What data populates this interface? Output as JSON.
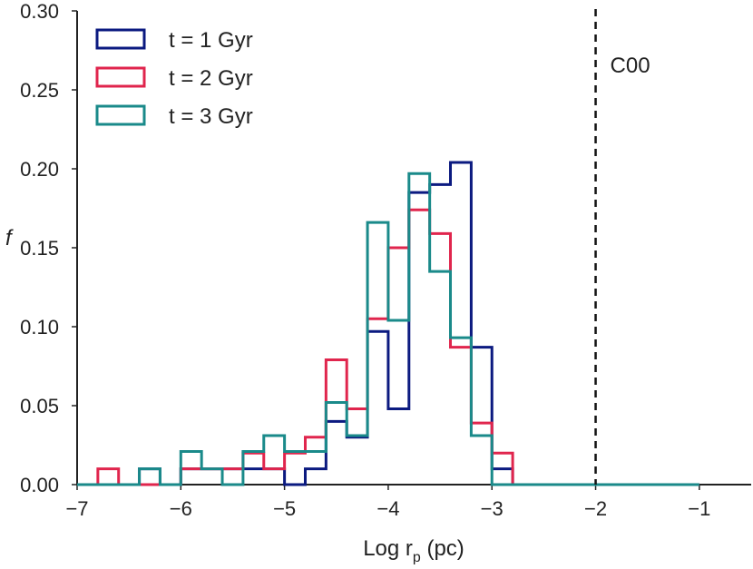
{
  "chart_data": {
    "type": "histogram-step",
    "xlabel_main": "Log r",
    "xlabel_sub": "p",
    "xlabel_tail": " (pc)",
    "ylabel": "f",
    "xlim": [
      -7.0,
      -0.5
    ],
    "ylim": [
      0.0,
      0.3
    ],
    "xticks": [
      -7,
      -6,
      -5,
      -4,
      -3,
      -2,
      -1
    ],
    "xtick_labels": [
      "−7",
      "−6",
      "−5",
      "−4",
      "−3",
      "−2",
      "−1"
    ],
    "yticks": [
      0.0,
      0.05,
      0.1,
      0.15,
      0.2,
      0.25,
      0.3
    ],
    "ytick_labels": [
      "0.00",
      "0.05",
      "0.10",
      "0.15",
      "0.20",
      "0.25",
      "0.30"
    ],
    "bin_edges": [
      -7.0,
      -6.8,
      -6.6,
      -6.4,
      -6.2,
      -6.0,
      -5.8,
      -5.6,
      -5.4,
      -5.2,
      -5.0,
      -4.8,
      -4.6,
      -4.4,
      -4.2,
      -4.0,
      -3.8,
      -3.6,
      -3.4,
      -3.2,
      -3.0,
      -2.8,
      -2.6,
      -2.4,
      -2.2,
      -2.0,
      -1.8,
      -1.6,
      -1.4,
      -1.2,
      -1.0
    ],
    "legend_position": "top-left",
    "series": [
      {
        "name": "t = 1 Gyr",
        "color": "#0b1a80",
        "values": [
          0,
          0,
          0,
          0.01,
          0,
          0.01,
          0.01,
          0.01,
          0.01,
          0.01,
          0,
          0.01,
          0.04,
          0.03,
          0.097,
          0.048,
          0.185,
          0.19,
          0.204,
          0.087,
          0.01,
          0,
          0,
          0,
          0,
          0,
          0,
          0,
          0,
          0
        ]
      },
      {
        "name": "t = 2 Gyr",
        "color": "#e0254d",
        "values": [
          0,
          0.01,
          0,
          0,
          0,
          0.01,
          0.01,
          0.01,
          0.02,
          0.01,
          0.02,
          0.03,
          0.079,
          0.048,
          0.105,
          0.15,
          0.174,
          0.159,
          0.087,
          0.039,
          0.02,
          0,
          0,
          0,
          0,
          0,
          0,
          0,
          0,
          0
        ]
      },
      {
        "name": "t = 3 Gyr",
        "color": "#1a8a8a",
        "values": [
          0,
          0,
          0,
          0.01,
          0,
          0.021,
          0.01,
          0,
          0.021,
          0.031,
          0.021,
          0.021,
          0.052,
          0.031,
          0.166,
          0.104,
          0.197,
          0.135,
          0.093,
          0.031,
          0,
          0,
          0,
          0,
          0,
          0,
          0,
          0,
          0,
          0
        ]
      }
    ],
    "vline": {
      "x": -2.0,
      "label": "C00",
      "style": "dashed",
      "color": "#111111"
    }
  }
}
